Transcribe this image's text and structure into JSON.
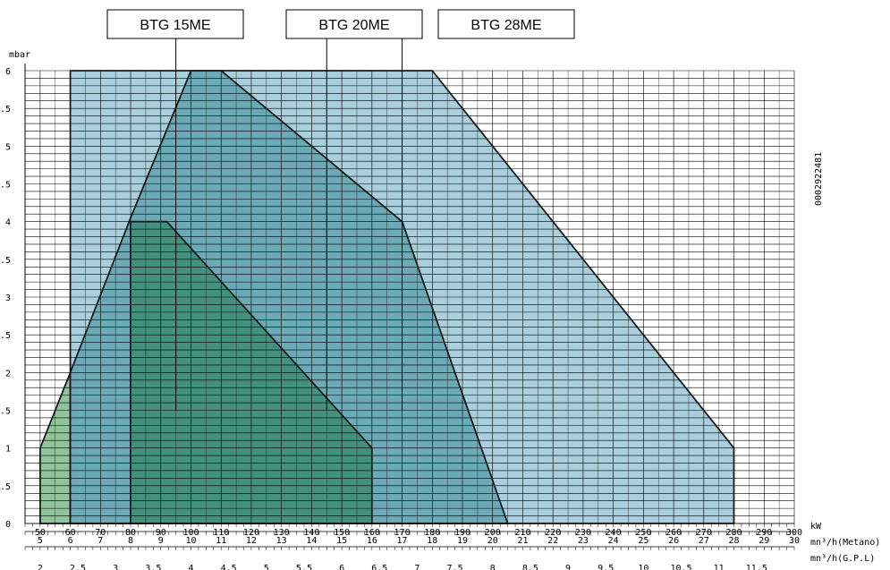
{
  "chart_data": {
    "type": "area",
    "ylabel": "mbar",
    "x_unit_main": "kW",
    "x_unit_metano": "mn³/h(Metano)",
    "x_unit_gpl": "mn³/h(G.P.L)",
    "doc_code": "0002922481",
    "xlim": [
      45,
      300
    ],
    "ylim": [
      0,
      6
    ],
    "kw_ticks": [
      50,
      60,
      70,
      80,
      90,
      100,
      110,
      120,
      130,
      140,
      150,
      160,
      170,
      180,
      190,
      200,
      210,
      220,
      230,
      240,
      250,
      260,
      270,
      280,
      290,
      300
    ],
    "metano_ticks": [
      {
        "kw": 50,
        "label": "5"
      },
      {
        "kw": 60,
        "label": "6"
      },
      {
        "kw": 70,
        "label": "7"
      },
      {
        "kw": 80,
        "label": "8"
      },
      {
        "kw": 90,
        "label": "9"
      },
      {
        "kw": 100,
        "label": "10"
      },
      {
        "kw": 110,
        "label": "11"
      },
      {
        "kw": 120,
        "label": "12"
      },
      {
        "kw": 130,
        "label": "13"
      },
      {
        "kw": 140,
        "label": "14"
      },
      {
        "kw": 150,
        "label": "15"
      },
      {
        "kw": 160,
        "label": "16"
      },
      {
        "kw": 170,
        "label": "17"
      },
      {
        "kw": 180,
        "label": "18"
      },
      {
        "kw": 190,
        "label": "19"
      },
      {
        "kw": 200,
        "label": "20"
      },
      {
        "kw": 210,
        "label": "21"
      },
      {
        "kw": 220,
        "label": "22"
      },
      {
        "kw": 230,
        "label": "23"
      },
      {
        "kw": 240,
        "label": "24"
      },
      {
        "kw": 250,
        "label": "25"
      },
      {
        "kw": 260,
        "label": "26"
      },
      {
        "kw": 270,
        "label": "27"
      },
      {
        "kw": 280,
        "label": "28"
      },
      {
        "kw": 290,
        "label": "29"
      },
      {
        "kw": 300,
        "label": "30"
      }
    ],
    "gpl_ticks": [
      {
        "kw": 50,
        "label": "2"
      },
      {
        "kw": 62.5,
        "label": "2.5"
      },
      {
        "kw": 75,
        "label": "3"
      },
      {
        "kw": 87.5,
        "label": "3.5"
      },
      {
        "kw": 100,
        "label": "4"
      },
      {
        "kw": 112.5,
        "label": "4.5"
      },
      {
        "kw": 125,
        "label": "5"
      },
      {
        "kw": 137.5,
        "label": "5.5"
      },
      {
        "kw": 150,
        "label": "6"
      },
      {
        "kw": 162.5,
        "label": "6.5"
      },
      {
        "kw": 175,
        "label": "7"
      },
      {
        "kw": 187.5,
        "label": "7.5"
      },
      {
        "kw": 200,
        "label": "8"
      },
      {
        "kw": 212.5,
        "label": "8.5"
      },
      {
        "kw": 225,
        "label": "9"
      },
      {
        "kw": 237.5,
        "label": "9.5"
      },
      {
        "kw": 250,
        "label": "10"
      },
      {
        "kw": 262.5,
        "label": "10.5"
      },
      {
        "kw": 275,
        "label": "11"
      },
      {
        "kw": 287.5,
        "label": "11.5"
      }
    ],
    "y_ticks": [
      {
        "value": 0,
        "label": "0"
      },
      {
        "value": 0.5,
        "label": "0.5"
      },
      {
        "value": 1,
        "label": "1"
      },
      {
        "value": 1.5,
        "label": "1.5"
      },
      {
        "value": 2,
        "label": "2"
      },
      {
        "value": 2.5,
        "label": "2.5"
      },
      {
        "value": 3,
        "label": "3"
      },
      {
        "value": 3.5,
        "label": "3.5"
      },
      {
        "value": 4,
        "label": "4"
      },
      {
        "value": 4.5,
        "label": "4.5"
      },
      {
        "value": 5,
        "label": "5"
      },
      {
        "value": 5.5,
        "label": "5.5"
      },
      {
        "value": 6,
        "label": "6"
      }
    ],
    "series": [
      {
        "name": "BTG 28ME",
        "color": "#a9cfdf",
        "pointer_kw": 170,
        "polygon": [
          [
            60,
            0
          ],
          [
            60,
            6
          ],
          [
            180,
            6
          ],
          [
            280,
            1
          ],
          [
            280,
            0
          ]
        ]
      },
      {
        "name": "BTG 20ME",
        "color": "#6aa9b5",
        "pointer_kw": 145,
        "polygon": [
          [
            60,
            0
          ],
          [
            60,
            2
          ],
          [
            80,
            4.05
          ],
          [
            100,
            6
          ],
          [
            110,
            6
          ],
          [
            170,
            4
          ],
          [
            205,
            0
          ]
        ]
      },
      {
        "name": "BTG 15ME",
        "color": "#44907f",
        "pointer_kw": 95,
        "polygon": [
          [
            80,
            0
          ],
          [
            80,
            4
          ],
          [
            92,
            4
          ],
          [
            160,
            1
          ],
          [
            160,
            0
          ]
        ]
      }
    ],
    "extra_region": {
      "color": "#90c59b",
      "polygon": [
        [
          50,
          0
        ],
        [
          50,
          1
        ],
        [
          60,
          2
        ],
        [
          60,
          0
        ]
      ]
    },
    "label_boxes": [
      {
        "series": "BTG 15ME",
        "text": "BTG 15ME"
      },
      {
        "series": "BTG 20ME",
        "text": "BTG 20ME"
      },
      {
        "series": "BTG 28ME",
        "text": "BTG 28ME"
      }
    ]
  }
}
